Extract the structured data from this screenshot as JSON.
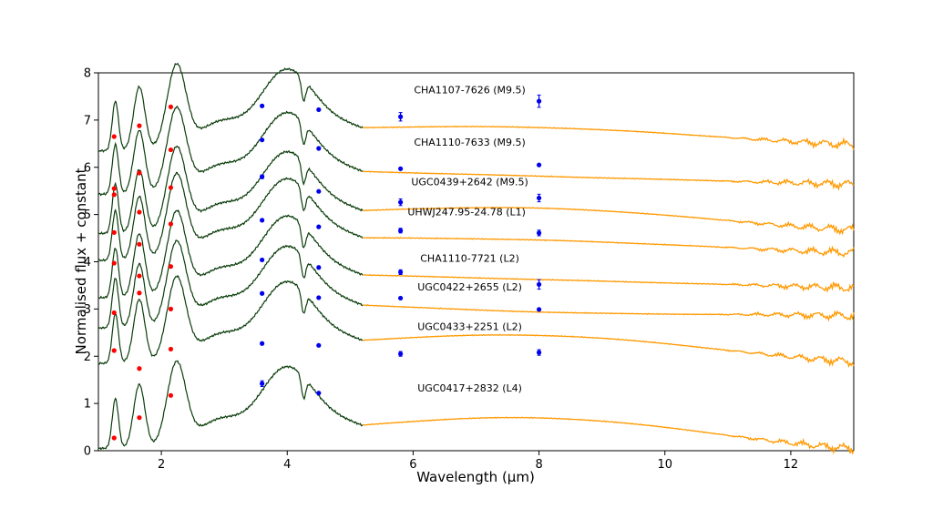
{
  "chart_data": {
    "type": "line",
    "title": "",
    "xlabel": "Wavelength (μm)",
    "ylabel": "Normalised flux + constant",
    "xlim": [
      1.0,
      13.0
    ],
    "ylim": [
      0,
      8
    ],
    "xticks": [
      2,
      4,
      6,
      8,
      10,
      12
    ],
    "yticks": [
      0,
      1,
      2,
      3,
      4,
      5,
      6,
      7,
      8
    ],
    "grid": false,
    "colors": {
      "nir": "#0b3d0b",
      "mir": "#ff9900",
      "red_points": "#ff0000",
      "blue_points": "#0000ee"
    },
    "series": [
      {
        "name": "CHA1107-7626 (M9.5)",
        "offset": 6.3,
        "label_x": 6.9,
        "label_y": 7.57,
        "red_points": [
          [
            1.25,
            6.65
          ],
          [
            1.65,
            6.88
          ],
          [
            2.15,
            7.28
          ]
        ],
        "blue_points": [
          [
            3.6,
            7.3,
            0.0
          ],
          [
            4.5,
            7.22,
            0.0
          ],
          [
            5.8,
            7.07,
            0.09
          ],
          [
            8.0,
            7.4,
            0.13
          ]
        ]
      },
      {
        "name": "CHA1110-7633 (M9.5)",
        "offset": 5.38,
        "label_x": 6.9,
        "label_y": 6.46,
        "red_points": [
          [
            1.25,
            5.55
          ],
          [
            1.65,
            5.88
          ],
          [
            2.15,
            6.37
          ]
        ],
        "blue_points": [
          [
            3.6,
            6.58,
            0.0
          ],
          [
            4.5,
            6.4,
            0.0
          ],
          [
            5.8,
            5.97,
            0.0
          ],
          [
            8.0,
            6.05,
            0.0
          ]
        ]
      },
      {
        "name": "UGC0439+2642 (M9.5)",
        "offset": 4.55,
        "label_x": 6.9,
        "label_y": 5.62,
        "red_points": [
          [
            1.25,
            5.42
          ],
          [
            1.65,
            5.05
          ],
          [
            2.15,
            5.57
          ]
        ],
        "blue_points": [
          [
            3.6,
            5.8,
            0.04
          ],
          [
            4.5,
            5.49,
            0.0
          ],
          [
            5.8,
            5.26,
            0.07
          ],
          [
            8.0,
            5.35,
            0.08
          ]
        ]
      },
      {
        "name": "UHWJ247.95-24.78 (L1)",
        "offset": 3.98,
        "label_x": 6.85,
        "label_y": 4.98,
        "red_points": [
          [
            1.25,
            4.62
          ],
          [
            1.65,
            4.37
          ],
          [
            2.15,
            4.8
          ]
        ],
        "blue_points": [
          [
            3.6,
            4.88,
            0.0
          ],
          [
            4.5,
            4.74,
            0.0
          ],
          [
            5.8,
            4.66,
            0.05
          ],
          [
            8.0,
            4.61,
            0.06
          ]
        ]
      },
      {
        "name": "CHA1110-7721 (L2)",
        "offset": 3.19,
        "label_x": 6.9,
        "label_y": 4.0,
        "red_points": [
          [
            1.25,
            3.97
          ],
          [
            1.65,
            3.7
          ],
          [
            2.15,
            3.9
          ]
        ],
        "blue_points": [
          [
            3.6,
            4.04,
            0.0
          ],
          [
            4.5,
            3.88,
            0.0
          ],
          [
            5.8,
            3.78,
            0.05
          ],
          [
            8.0,
            3.52,
            0.1
          ]
        ]
      },
      {
        "name": "UGC0422+2655 (L2)",
        "offset": 2.55,
        "label_x": 6.9,
        "label_y": 3.39,
        "red_points": [
          [
            1.25,
            2.92
          ],
          [
            1.65,
            3.34
          ],
          [
            2.15,
            3.0
          ]
        ],
        "blue_points": [
          [
            3.6,
            3.33,
            0.0
          ],
          [
            4.5,
            3.24,
            0.0
          ],
          [
            5.8,
            3.23,
            0.0
          ],
          [
            8.0,
            2.99,
            0.0
          ]
        ]
      },
      {
        "name": "UGC0433+2251 (L2)",
        "offset": 1.8,
        "label_x": 6.9,
        "label_y": 2.55,
        "red_points": [
          [
            1.25,
            2.12
          ],
          [
            1.65,
            1.74
          ],
          [
            2.15,
            2.15
          ]
        ],
        "blue_points": [
          [
            3.6,
            2.27,
            0.0
          ],
          [
            4.5,
            2.23,
            0.0
          ],
          [
            5.8,
            2.05,
            0.05
          ],
          [
            8.0,
            2.08,
            0.06
          ]
        ]
      },
      {
        "name": "UGC0417+2832 (L4)",
        "offset": 0.0,
        "label_x": 6.9,
        "label_y": 1.25,
        "red_points": [
          [
            1.25,
            0.27
          ],
          [
            1.65,
            0.7
          ],
          [
            2.15,
            1.17
          ]
        ],
        "blue_points": [
          [
            3.6,
            1.42,
            0.06
          ],
          [
            4.5,
            1.22,
            0.0
          ]
        ]
      }
    ]
  }
}
